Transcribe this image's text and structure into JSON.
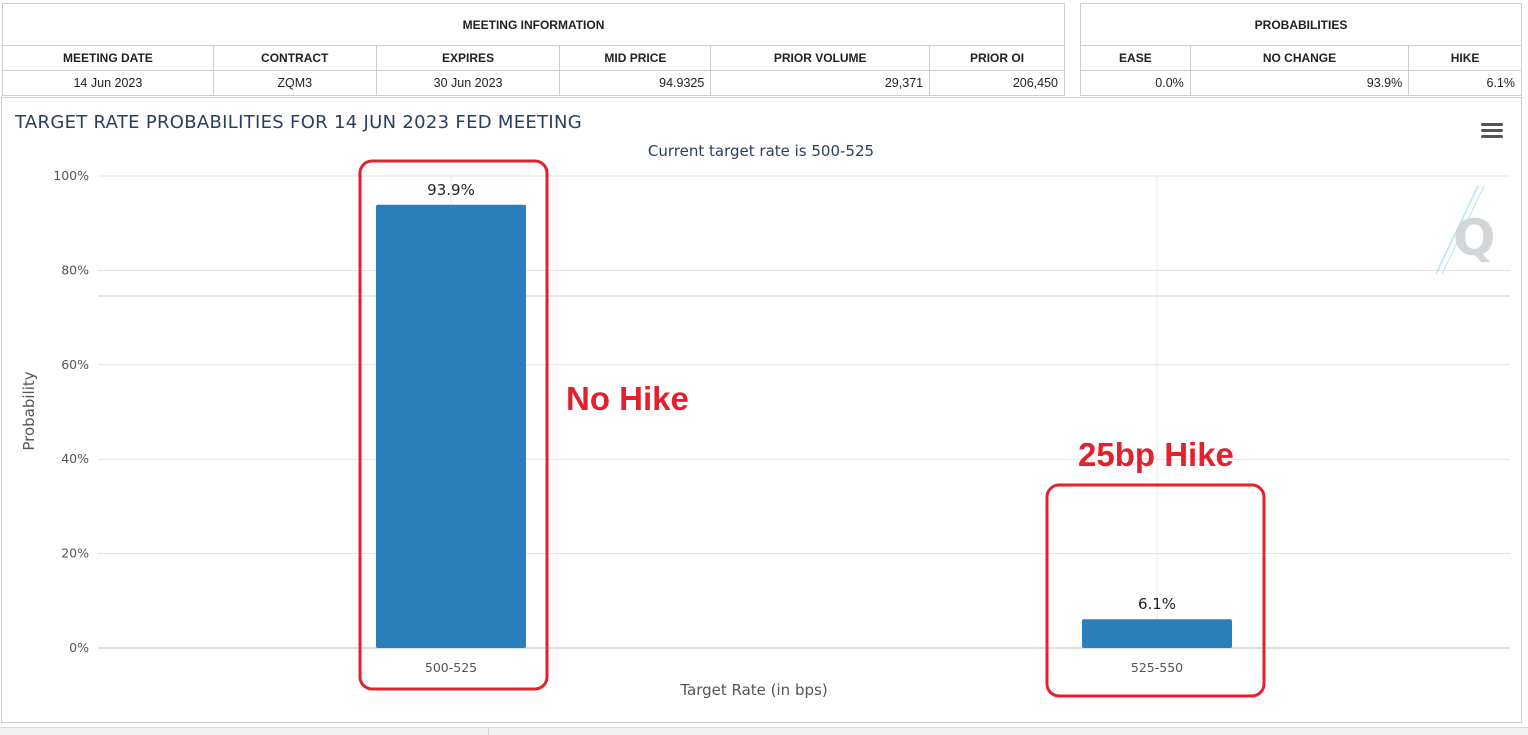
{
  "meeting_info": {
    "title": "MEETING INFORMATION",
    "headers": [
      "MEETING DATE",
      "CONTRACT",
      "EXPIRES",
      "MID PRICE",
      "PRIOR VOLUME",
      "PRIOR OI"
    ],
    "row": [
      "14 Jun 2023",
      "ZQM3",
      "30 Jun 2023",
      "94.9325",
      "29,371",
      "206,450"
    ]
  },
  "probabilities": {
    "title": "PROBABILITIES",
    "headers": [
      "EASE",
      "NO CHANGE",
      "HIKE"
    ],
    "row": [
      "0.0%",
      "93.9%",
      "6.1%"
    ]
  },
  "chart_data": {
    "type": "bar",
    "title": "TARGET RATE PROBABILITIES FOR 14 JUN 2023 FED MEETING",
    "subtitle": "Current target rate is 500-525",
    "xlabel": "Target Rate (in bps)",
    "ylabel": "Probability",
    "categories": [
      "500-525",
      "525-550"
    ],
    "values": [
      93.9,
      6.1
    ],
    "data_labels": [
      "93.9%",
      "6.1%"
    ],
    "ylim": [
      0,
      100
    ],
    "yticks": [
      0,
      20,
      40,
      60,
      80,
      100
    ],
    "ytick_labels": [
      "0%",
      "20%",
      "40%",
      "60%",
      "80%",
      "100%"
    ],
    "grid": true,
    "bar_color": "#2a7fba",
    "annotations": [
      {
        "text": "No Hike",
        "category": "500-525",
        "color": "#e3212d"
      },
      {
        "text": "25bp Hike",
        "category": "525-550",
        "color": "#e3212d"
      }
    ]
  },
  "menu_icon": "hamburger-menu-icon",
  "logo": "cme-q-logo"
}
